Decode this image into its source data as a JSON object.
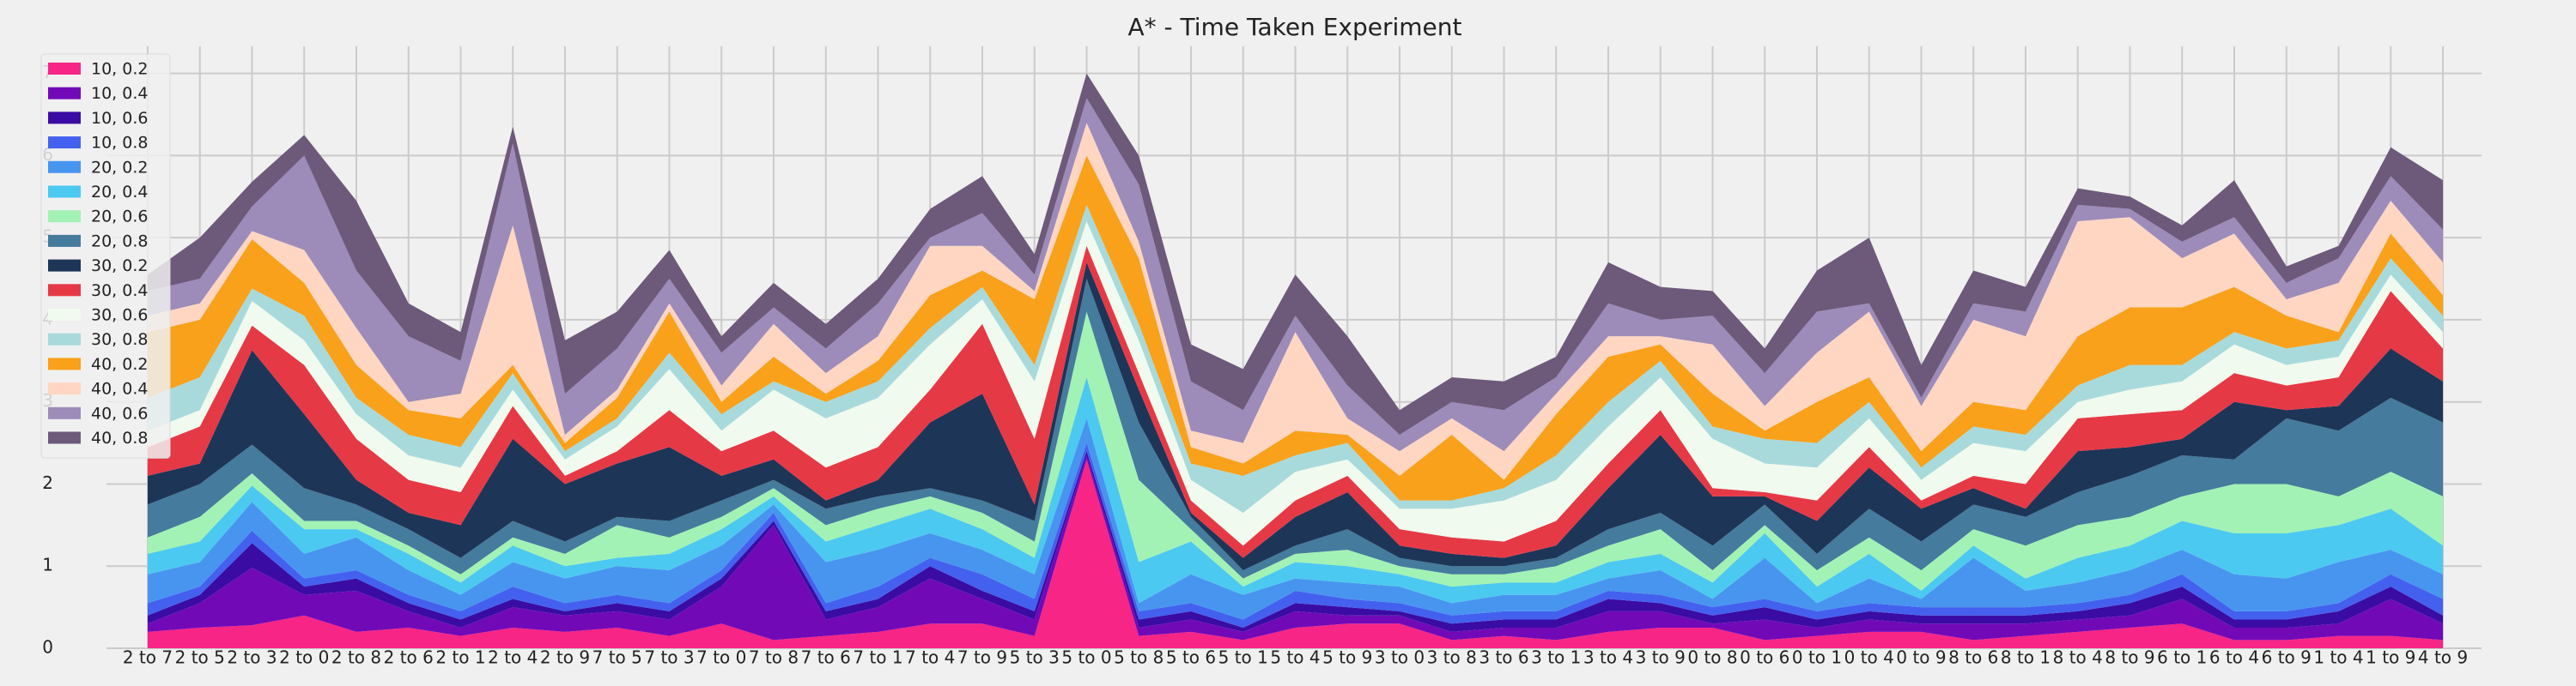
{
  "chart_data": {
    "type": "stackedarea",
    "title": "A* - Time Taken Experiment",
    "categories": [
      "2 to 7",
      "2 to 5",
      "2 to 3",
      "2 to 0",
      "2 to 8",
      "2 to 6",
      "2 to 1",
      "2 to 4",
      "2 to 9",
      "7 to 5",
      "7 to 3",
      "7 to 0",
      "7 to 8",
      "7 to 6",
      "7 to 1",
      "7 to 4",
      "7 to 9",
      "5 to 3",
      "5 to 0",
      "5 to 8",
      "5 to 6",
      "5 to 1",
      "5 to 4",
      "5 to 9",
      "3 to 0",
      "3 to 8",
      "3 to 6",
      "3 to 1",
      "3 to 4",
      "3 to 9",
      "0 to 8",
      "0 to 6",
      "0 to 1",
      "0 to 4",
      "0 to 9",
      "8 to 6",
      "8 to 1",
      "8 to 4",
      "8 to 9",
      "6 to 1",
      "6 to 4",
      "6 to 9",
      "1 to 4",
      "1 to 9",
      "4 to 9"
    ],
    "ylim": [
      0,
      7.33
    ],
    "yticks": [
      0,
      1,
      2,
      3,
      4,
      5,
      6,
      7
    ],
    "grid": true,
    "legend": "upper left",
    "series": [
      {
        "name": "10, 0.2",
        "color": "#f72585",
        "values": [
          0.2,
          0.25,
          0.28,
          0.4,
          0.2,
          0.25,
          0.15,
          0.25,
          0.2,
          0.25,
          0.15,
          0.3,
          0.1,
          0.15,
          0.2,
          0.3,
          0.3,
          0.15,
          2.3,
          0.15,
          0.2,
          0.1,
          0.25,
          0.3,
          0.3,
          0.1,
          0.15,
          0.1,
          0.2,
          0.25,
          0.25,
          0.1,
          0.15,
          0.2,
          0.2,
          0.1,
          0.15,
          0.2,
          0.25,
          0.3,
          0.1,
          0.1,
          0.15,
          0.15,
          0.1
        ]
      },
      {
        "name": "10, 0.4",
        "color": "#7209b7",
        "values": [
          0.1,
          0.3,
          0.7,
          0.25,
          0.5,
          0.2,
          0.1,
          0.25,
          0.2,
          0.2,
          0.2,
          0.45,
          1.4,
          0.2,
          0.3,
          0.55,
          0.3,
          0.2,
          0.05,
          0.1,
          0.15,
          0.1,
          0.2,
          0.1,
          0.1,
          0.1,
          0.1,
          0.15,
          0.25,
          0.2,
          0.05,
          0.25,
          0.1,
          0.15,
          0.1,
          0.2,
          0.15,
          0.15,
          0.15,
          0.3,
          0.15,
          0.15,
          0.15,
          0.45,
          0.2
        ]
      },
      {
        "name": "10, 0.6",
        "color": "#3a0ca3",
        "values": [
          0.1,
          0.1,
          0.3,
          0.1,
          0.15,
          0.1,
          0.1,
          0.1,
          0.05,
          0.1,
          0.1,
          0.1,
          0.05,
          0.1,
          0.1,
          0.15,
          0.1,
          0.1,
          0.05,
          0.1,
          0.1,
          0.05,
          0.1,
          0.1,
          0.05,
          0.1,
          0.1,
          0.1,
          0.15,
          0.1,
          0.1,
          0.15,
          0.1,
          0.1,
          0.1,
          0.1,
          0.1,
          0.1,
          0.15,
          0.15,
          0.1,
          0.1,
          0.15,
          0.15,
          0.1
        ]
      },
      {
        "name": "10, 0.8",
        "color": "#4361ee",
        "values": [
          0.15,
          0.1,
          0.15,
          0.1,
          0.1,
          0.1,
          0.1,
          0.15,
          0.1,
          0.1,
          0.1,
          0.1,
          0.1,
          0.1,
          0.15,
          0.1,
          0.2,
          0.15,
          0.1,
          0.1,
          0.1,
          0.1,
          0.15,
          0.1,
          0.1,
          0.1,
          0.1,
          0.1,
          0.1,
          0.1,
          0.1,
          0.1,
          0.1,
          0.1,
          0.1,
          0.1,
          0.1,
          0.1,
          0.1,
          0.15,
          0.1,
          0.1,
          0.1,
          0.15,
          0.2
        ]
      },
      {
        "name": "20, 0.2",
        "color": "#4895ef",
        "values": [
          0.35,
          0.3,
          0.35,
          0.3,
          0.4,
          0.3,
          0.2,
          0.3,
          0.3,
          0.35,
          0.4,
          0.3,
          0.1,
          0.5,
          0.45,
          0.3,
          0.3,
          0.3,
          0.3,
          0.1,
          0.35,
          0.3,
          0.15,
          0.2,
          0.2,
          0.15,
          0.2,
          0.2,
          0.15,
          0.3,
          0.1,
          0.5,
          0.1,
          0.3,
          0.1,
          0.6,
          0.2,
          0.25,
          0.3,
          0.3,
          0.45,
          0.4,
          0.5,
          0.3,
          0.3
        ]
      },
      {
        "name": "20, 0.4",
        "color": "#4cc9f0",
        "values": [
          0.25,
          0.25,
          0.2,
          0.3,
          0.1,
          0.2,
          0.15,
          0.2,
          0.15,
          0.1,
          0.2,
          0.2,
          0.1,
          0.25,
          0.3,
          0.3,
          0.25,
          0.2,
          0.5,
          0.5,
          0.4,
          0.1,
          0.2,
          0.2,
          0.15,
          0.2,
          0.15,
          0.15,
          0.2,
          0.2,
          0.2,
          0.3,
          0.2,
          0.3,
          0.1,
          0.15,
          0.15,
          0.3,
          0.3,
          0.35,
          0.5,
          0.55,
          0.45,
          0.5,
          0.35
        ]
      },
      {
        "name": "20, 0.6",
        "color": "#a3f2b5",
        "values": [
          0.2,
          0.3,
          0.15,
          0.1,
          0.1,
          0.1,
          0.1,
          0.1,
          0.15,
          0.4,
          0.2,
          0.15,
          0.1,
          0.2,
          0.2,
          0.15,
          0.2,
          0.2,
          0.8,
          1.0,
          0.15,
          0.1,
          0.1,
          0.2,
          0.1,
          0.15,
          0.1,
          0.2,
          0.2,
          0.3,
          0.15,
          0.1,
          0.2,
          0.2,
          0.25,
          0.2,
          0.4,
          0.4,
          0.35,
          0.3,
          0.6,
          0.6,
          0.35,
          0.45,
          0.6
        ]
      },
      {
        "name": "20, 0.8",
        "color": "#457b9d",
        "values": [
          0.4,
          0.4,
          0.35,
          0.4,
          0.2,
          0.2,
          0.2,
          0.2,
          0.15,
          0.1,
          0.2,
          0.2,
          0.1,
          0.2,
          0.15,
          0.1,
          0.15,
          0.25,
          0.4,
          0.7,
          0.15,
          0.1,
          0.1,
          0.25,
          0.1,
          0.1,
          0.1,
          0.1,
          0.2,
          0.2,
          0.3,
          0.25,
          0.2,
          0.35,
          0.35,
          0.3,
          0.35,
          0.4,
          0.5,
          0.5,
          0.3,
          0.8,
          0.8,
          0.9,
          0.9
        ]
      },
      {
        "name": "30, 0.2",
        "color": "#1d3557",
        "values": [
          0.35,
          0.25,
          1.15,
          0.9,
          0.3,
          0.2,
          0.4,
          1.0,
          0.7,
          0.65,
          0.9,
          0.3,
          0.25,
          0.1,
          0.2,
          0.8,
          1.3,
          0.2,
          0.2,
          0.4,
          0.05,
          0.15,
          0.35,
          0.45,
          0.15,
          0.15,
          0.1,
          0.15,
          0.5,
          0.95,
          0.6,
          0.1,
          0.4,
          0.5,
          0.4,
          0.2,
          0.1,
          0.5,
          0.35,
          0.2,
          0.7,
          0.1,
          0.3,
          0.6,
          0.5
        ]
      },
      {
        "name": "30, 0.4",
        "color": "#e63946",
        "values": [
          0.35,
          0.45,
          0.3,
          0.6,
          0.5,
          0.4,
          0.4,
          0.4,
          0.1,
          0.15,
          0.45,
          0.3,
          0.35,
          0.4,
          0.4,
          0.4,
          0.85,
          0.8,
          0.2,
          0.2,
          0.15,
          0.15,
          0.2,
          0.2,
          0.2,
          0.2,
          0.2,
          0.3,
          0.3,
          0.3,
          0.1,
          0.05,
          0.25,
          0.25,
          0.1,
          0.15,
          0.3,
          0.4,
          0.4,
          0.35,
          0.35,
          0.3,
          0.35,
          0.7,
          0.4
        ]
      },
      {
        "name": "30, 0.6",
        "color": "#f1faee",
        "values": [
          0.2,
          0.2,
          0.3,
          0.3,
          0.3,
          0.3,
          0.3,
          0.2,
          0.2,
          0.3,
          0.5,
          0.25,
          0.5,
          0.6,
          0.6,
          0.55,
          0.3,
          0.7,
          0.3,
          0.4,
          0.25,
          0.4,
          0.35,
          0.2,
          0.25,
          0.35,
          0.5,
          0.5,
          0.45,
          0.4,
          0.6,
          0.35,
          0.4,
          0.35,
          0.25,
          0.4,
          0.4,
          0.2,
          0.3,
          0.35,
          0.35,
          0.25,
          0.25,
          0.2,
          0.2
        ]
      },
      {
        "name": "30, 0.8",
        "color": "#a8dadc",
        "values": [
          0.4,
          0.4,
          0.15,
          0.3,
          0.2,
          0.25,
          0.25,
          0.2,
          0.1,
          0.1,
          0.2,
          0.2,
          0.1,
          0.2,
          0.2,
          0.2,
          0.15,
          0.2,
          0.2,
          0.2,
          0.2,
          0.45,
          0.2,
          0.2,
          0.1,
          0.1,
          0.15,
          0.3,
          0.3,
          0.2,
          0.15,
          0.3,
          0.3,
          0.2,
          0.15,
          0.2,
          0.2,
          0.2,
          0.3,
          0.2,
          0.15,
          0.2,
          0.2,
          0.2,
          0.2
        ]
      },
      {
        "name": "40, 0.2",
        "color": "#f9a11b",
        "values": [
          0.8,
          0.7,
          0.6,
          0.4,
          0.4,
          0.3,
          0.35,
          0.1,
          0.1,
          0.25,
          0.5,
          0.15,
          0.3,
          0.1,
          0.25,
          0.4,
          0.2,
          0.8,
          0.6,
          0.8,
          0.2,
          0.15,
          0.3,
          0.1,
          0.3,
          0.8,
          0.1,
          0.5,
          0.55,
          0.2,
          0.4,
          0.1,
          0.5,
          0.3,
          0.2,
          0.3,
          0.3,
          0.6,
          0.7,
          0.7,
          0.55,
          0.4,
          0.1,
          0.3,
          0.25
        ]
      },
      {
        "name": "40, 0.4",
        "color": "#ffd6c2",
        "values": [
          0.2,
          0.2,
          0.1,
          0.4,
          0.45,
          0.1,
          0.3,
          1.7,
          0.1,
          0.1,
          0.1,
          0.2,
          0.4,
          0.25,
          0.3,
          0.6,
          0.3,
          0.1,
          0.4,
          0.2,
          0.2,
          0.25,
          1.2,
          0.2,
          0.3,
          0.2,
          0.35,
          0.25,
          0.25,
          0.1,
          0.6,
          0.3,
          0.6,
          0.8,
          0.55,
          1.0,
          0.9,
          1.4,
          1.1,
          0.6,
          0.65,
          0.2,
          0.6,
          0.4,
          0.4
        ]
      },
      {
        "name": "40, 0.6",
        "color": "#9d8bb9",
        "values": [
          0.3,
          0.3,
          0.3,
          1.15,
          0.7,
          0.8,
          0.4,
          1.0,
          0.5,
          0.5,
          0.3,
          0.4,
          0.2,
          0.3,
          0.4,
          0.1,
          0.4,
          0.2,
          0.3,
          0.7,
          0.6,
          0.4,
          0.2,
          0.4,
          0.2,
          0.2,
          0.5,
          0.2,
          0.4,
          0.2,
          0.35,
          0.4,
          0.5,
          0.1,
          0.1,
          0.2,
          0.3,
          0.2,
          0.1,
          0.2,
          0.2,
          0.2,
          0.3,
          0.3,
          0.4
        ]
      },
      {
        "name": "40, 0.8",
        "color": "#6d597a",
        "values": [
          0.2,
          0.5,
          0.3,
          0.25,
          0.85,
          0.4,
          0.35,
          0.2,
          0.65,
          0.45,
          0.35,
          0.2,
          0.3,
          0.3,
          0.3,
          0.35,
          0.45,
          0.25,
          0.3,
          0.35,
          0.45,
          0.5,
          0.5,
          0.6,
          0.3,
          0.3,
          0.35,
          0.25,
          0.5,
          0.4,
          0.3,
          0.3,
          0.5,
          0.8,
          0.4,
          0.4,
          0.3,
          0.2,
          0.15,
          0.2,
          0.45,
          0.2,
          0.15,
          0.35,
          0.6
        ]
      }
    ]
  }
}
